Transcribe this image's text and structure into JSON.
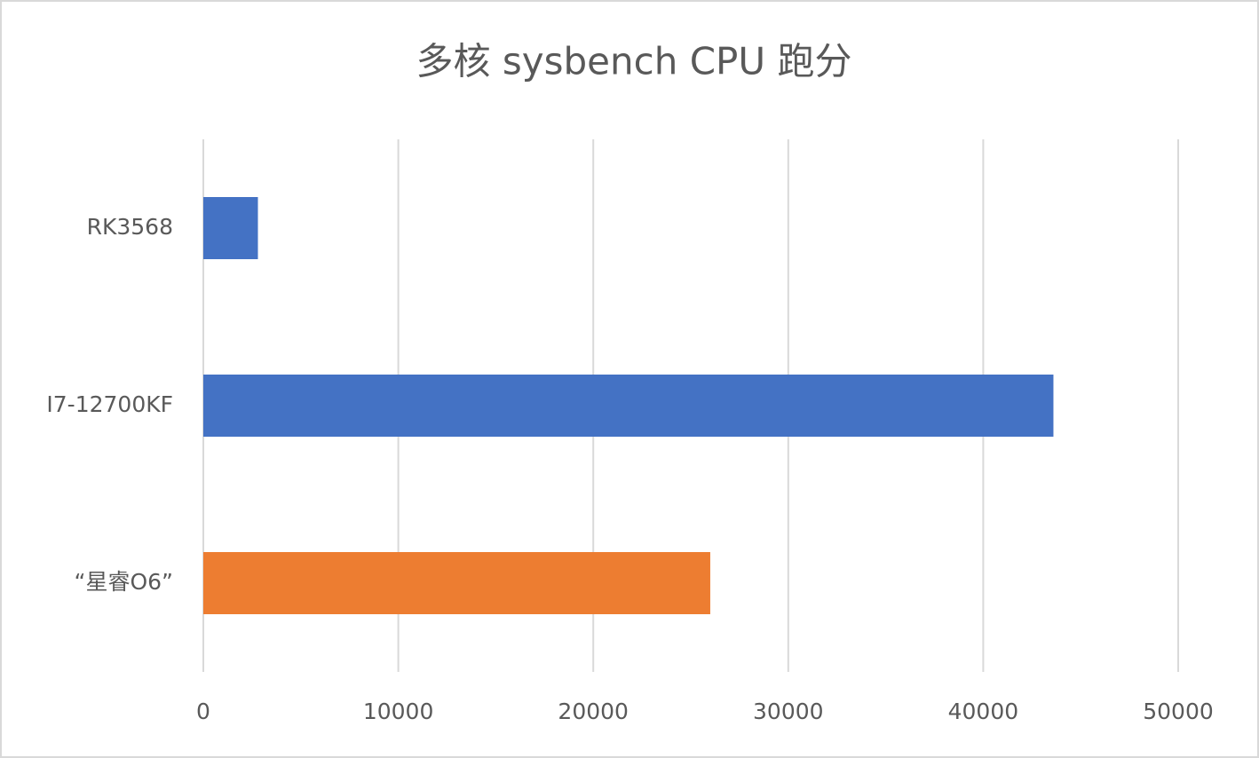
{
  "chart_data": {
    "type": "hbar",
    "title": "多核 sysbench CPU 跑分",
    "categories": [
      "RK3568",
      "I7-12700KF",
      "“星睿O6”"
    ],
    "values": [
      2800,
      43600,
      26000
    ],
    "colors": [
      "#4472c4",
      "#4472c4",
      "#ed7d31"
    ],
    "xlim": [
      0,
      50000
    ],
    "xticks": [
      0,
      10000,
      20000,
      30000,
      40000,
      50000
    ],
    "grid": true
  }
}
